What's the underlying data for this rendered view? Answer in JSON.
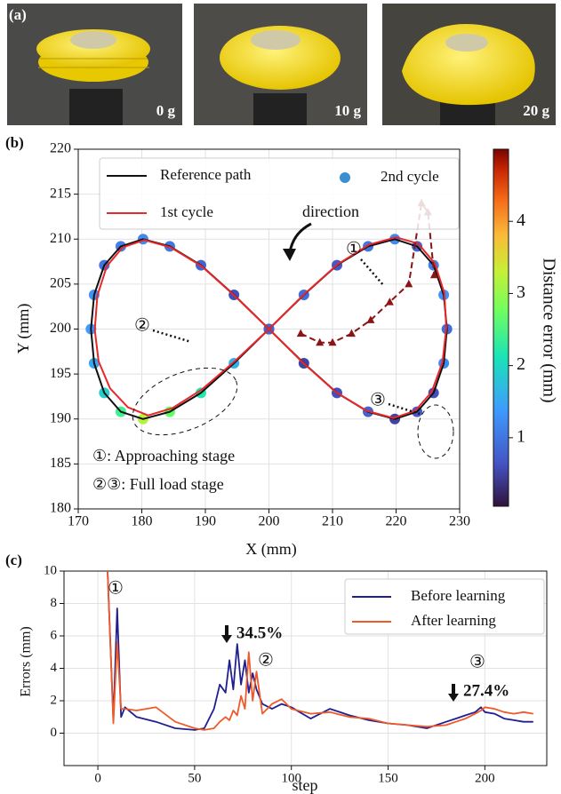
{
  "panel_a": {
    "label": "(a)",
    "photos": [
      {
        "caption": "0 g"
      },
      {
        "caption": "10 g"
      },
      {
        "caption": "20 g"
      }
    ]
  },
  "chart_data": [
    {
      "type": "line",
      "panel_label": "(b)",
      "x_label": "X (mm)",
      "y_label": "Y (mm)",
      "xlim": [
        170,
        230
      ],
      "xticks": [
        170,
        180,
        190,
        200,
        210,
        220,
        230
      ],
      "ylim": [
        180,
        220
      ],
      "yticks": [
        180,
        185,
        190,
        195,
        200,
        205,
        210,
        215,
        220
      ],
      "grid": true,
      "series": [
        {
          "name": "Reference path",
          "color": "#111111",
          "style": "line",
          "x": [
            200,
            205.5,
            210.7,
            215.6,
            219.8,
            223.3,
            225.9,
            227.5,
            228,
            227.5,
            225.9,
            223.3,
            219.8,
            215.6,
            210.7,
            205.5,
            200,
            194.5,
            189.3,
            184.4,
            180.2,
            176.7,
            174.1,
            172.5,
            172,
            172.5,
            174.1,
            176.7,
            180.2,
            184.4,
            189.3,
            194.5,
            200
          ],
          "y": [
            200,
            203.8,
            207.1,
            209.2,
            210,
            209.2,
            207.1,
            203.8,
            200,
            196.2,
            192.9,
            190.8,
            190,
            190.8,
            192.9,
            196.2,
            200,
            203.8,
            207.1,
            209.2,
            210,
            209.2,
            207.1,
            203.8,
            200,
            196.2,
            192.9,
            190.8,
            190,
            190.8,
            192.9,
            196.2,
            200
          ]
        },
        {
          "name": "1st cycle",
          "color": "#e8272a",
          "style": "line",
          "x": [
            200,
            205.6,
            210.8,
            215.8,
            220,
            223.5,
            226.1,
            227.6,
            227.9,
            227.3,
            225.6,
            223,
            219.6,
            215.4,
            210.5,
            205.3,
            200,
            194.6,
            189.4,
            184.5,
            180.4,
            177,
            174.5,
            173,
            172.6,
            173.2,
            175,
            177.8,
            181,
            184.8,
            189.5,
            194.6,
            200
          ],
          "y": [
            200,
            203.9,
            207.2,
            209.4,
            210.2,
            209.5,
            207.3,
            204,
            200.1,
            196.3,
            193,
            190.9,
            190.1,
            190.9,
            193,
            196.3,
            200,
            203.7,
            207,
            209.1,
            209.9,
            209.1,
            207,
            203.7,
            199.9,
            196.4,
            193.4,
            191.3,
            190.4,
            191.2,
            193.3,
            196.4,
            200
          ]
        },
        {
          "name": "2nd cycle",
          "color": "#3b8fd0",
          "style": "scatter",
          "x": [
            200,
            205.5,
            210.7,
            215.6,
            219.8,
            223.3,
            225.9,
            227.5,
            228,
            227.5,
            225.9,
            223.3,
            219.8,
            215.6,
            210.7,
            205.5,
            200,
            194.5,
            189.3,
            184.4,
            180.2,
            176.7,
            174.1,
            172.5,
            172,
            172.5,
            174.1,
            176.7,
            180.2,
            184.4,
            189.3,
            194.5,
            200
          ],
          "y": [
            200,
            203.8,
            207.1,
            209.2,
            210,
            209.2,
            207.1,
            203.8,
            200,
            196.2,
            192.9,
            190.8,
            190,
            190.8,
            192.9,
            196.2,
            200,
            203.8,
            207.1,
            209.2,
            210,
            209.2,
            207.1,
            203.8,
            200,
            196.2,
            192.9,
            190.8,
            190,
            190.8,
            192.9,
            196.2,
            200
          ],
          "errors": [
            0.5,
            0.9,
            0.7,
            1.0,
            1.2,
            0.8,
            1.1,
            1.3,
            0.9,
            1.2,
            0.6,
            0.7,
            0.5,
            0.8,
            0.6,
            0.5,
            0.4,
            0.6,
            0.8,
            1.0,
            1.2,
            1.1,
            1.0,
            1.3,
            1.4,
            1.5,
            1.9,
            2.4,
            3.2,
            2.7,
            2.2,
            1.6,
            0.8
          ]
        },
        {
          "color": "#8b1414",
          "style": "dashed-triangle",
          "x": [
            205,
            208,
            210,
            213,
            216,
            219,
            222,
            224,
            225,
            226
          ],
          "y": [
            199.5,
            198.5,
            198.5,
            199.5,
            201,
            203,
            205,
            214,
            213,
            206
          ]
        }
      ],
      "colorbar": {
        "label": "Distance error (mm)",
        "colormap": "turbo",
        "clim": [
          0.05,
          5
        ],
        "ticks": [
          1,
          2,
          3,
          4
        ]
      },
      "annotations": [
        "direction",
        "①",
        "②",
        "③",
        "①: Approaching stage",
        "②③: Full load stage"
      ]
    },
    {
      "type": "line",
      "panel_label": "(c)",
      "x_label": "step",
      "y_label": "Errors (mm)",
      "xlim": [
        -17.5,
        232
      ],
      "xticks": [
        0,
        50,
        100,
        150,
        200
      ],
      "ylim": [
        -2,
        10
      ],
      "yticks": [
        0,
        2,
        4,
        6,
        8,
        10
      ],
      "grid": true,
      "x": [
        5,
        8,
        10,
        12,
        14,
        20,
        30,
        40,
        50,
        55,
        60,
        63,
        66,
        68,
        70,
        72,
        74,
        76,
        78,
        80,
        82,
        85,
        90,
        95,
        100,
        110,
        120,
        130,
        140,
        150,
        160,
        170,
        180,
        185,
        190,
        195,
        198,
        200,
        205,
        210,
        215,
        220,
        225
      ],
      "series": [
        {
          "name": "Before learning",
          "color": "#1f1f8f",
          "values": [
            10,
            0.8,
            7.7,
            1.0,
            1.6,
            1.0,
            0.7,
            0.3,
            0.2,
            0.3,
            1.5,
            3.0,
            2.5,
            4.5,
            2.7,
            5.5,
            3.0,
            4.5,
            2.5,
            3.7,
            2.7,
            1.8,
            1.5,
            1.8,
            1.6,
            0.9,
            1.5,
            1.1,
            0.8,
            0.6,
            0.5,
            0.3,
            0.7,
            0.9,
            1.1,
            1.3,
            1.6,
            1.3,
            1.2,
            0.9,
            0.8,
            0.7,
            0.7
          ]
        },
        {
          "name": "After learning",
          "color": "#f05a28",
          "values": [
            10,
            0.6,
            5.6,
            1.5,
            1.5,
            1.4,
            1.6,
            0.7,
            0.3,
            0.2,
            0.3,
            0.7,
            1.0,
            0.8,
            1.4,
            1.1,
            2.3,
            1.5,
            5.0,
            2.0,
            3.8,
            1.2,
            1.8,
            2.1,
            1.5,
            1.2,
            1.3,
            1.0,
            0.9,
            0.6,
            0.5,
            0.4,
            0.5,
            0.7,
            0.9,
            1.2,
            1.4,
            1.6,
            1.5,
            1.3,
            1.2,
            1.3,
            1.2
          ]
        }
      ],
      "annotations": [
        "①",
        "②",
        "③",
        "34.5%",
        "27.4%"
      ]
    }
  ]
}
